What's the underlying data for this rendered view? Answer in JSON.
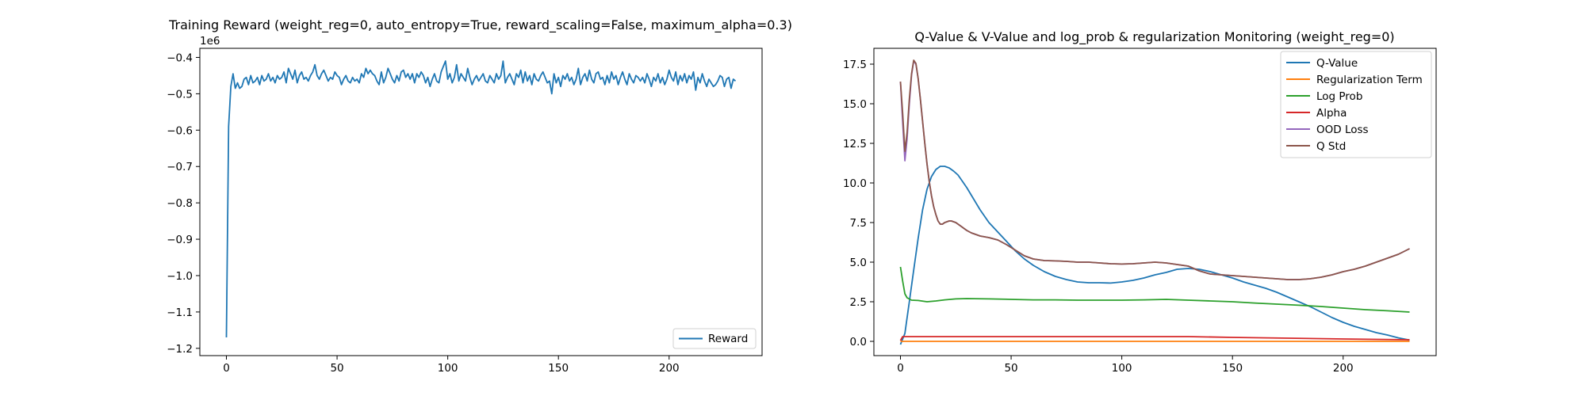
{
  "chart_data": [
    {
      "type": "line",
      "title": "Training Reward (weight_reg=0, auto_entropy=True, reward_scaling=False, maximum_alpha=0.3)",
      "xlabel": "",
      "ylabel": "",
      "offset_label": "1e6",
      "xlim": [
        -12,
        242
      ],
      "ylim": [
        -1.22,
        -0.375
      ],
      "xticks": [
        0,
        50,
        100,
        150,
        200
      ],
      "xtick_labels": [
        "0",
        "50",
        "100",
        "150",
        "200"
      ],
      "yticks": [
        -1.2,
        -1.1,
        -1.0,
        -0.9,
        -0.8,
        -0.7,
        -0.6,
        -0.5,
        -0.4
      ],
      "ytick_labels": [
        "−1.2",
        "−1.1",
        "−1.0",
        "−0.9",
        "−0.8",
        "−0.7",
        "−0.6",
        "−0.5",
        "−0.4"
      ],
      "grid": false,
      "legend_position": "lower-right",
      "series": [
        {
          "name": "Reward",
          "color": "#1f77b4",
          "x": [
            0,
            1,
            2,
            3,
            4,
            5,
            6,
            7,
            8,
            9,
            10,
            11,
            12,
            13,
            14,
            15,
            16,
            17,
            18,
            19,
            20,
            21,
            22,
            23,
            24,
            25,
            26,
            27,
            28,
            29,
            30,
            31,
            32,
            33,
            34,
            35,
            36,
            37,
            38,
            39,
            40,
            41,
            42,
            43,
            44,
            45,
            46,
            47,
            48,
            49,
            50,
            51,
            52,
            53,
            54,
            55,
            56,
            57,
            58,
            59,
            60,
            61,
            62,
            63,
            64,
            65,
            66,
            67,
            68,
            69,
            70,
            71,
            72,
            73,
            74,
            75,
            76,
            77,
            78,
            79,
            80,
            81,
            82,
            83,
            84,
            85,
            86,
            87,
            88,
            89,
            90,
            91,
            92,
            93,
            94,
            95,
            96,
            97,
            98,
            99,
            100,
            101,
            102,
            103,
            104,
            105,
            106,
            107,
            108,
            109,
            110,
            111,
            112,
            113,
            114,
            115,
            116,
            117,
            118,
            119,
            120,
            121,
            122,
            123,
            124,
            125,
            126,
            127,
            128,
            129,
            130,
            131,
            132,
            133,
            134,
            135,
            136,
            137,
            138,
            139,
            140,
            141,
            142,
            143,
            144,
            145,
            146,
            147,
            148,
            149,
            150,
            151,
            152,
            153,
            154,
            155,
            156,
            157,
            158,
            159,
            160,
            161,
            162,
            163,
            164,
            165,
            166,
            167,
            168,
            169,
            170,
            171,
            172,
            173,
            174,
            175,
            176,
            177,
            178,
            179,
            180,
            181,
            182,
            183,
            184,
            185,
            186,
            187,
            188,
            189,
            190,
            191,
            192,
            193,
            194,
            195,
            196,
            197,
            198,
            199,
            200,
            201,
            202,
            203,
            204,
            205,
            206,
            207,
            208,
            209,
            210,
            211,
            212,
            213,
            214,
            215,
            216,
            217,
            218,
            219,
            220,
            221,
            222,
            223,
            224,
            225,
            226,
            227,
            228,
            229,
            230
          ],
          "values": [
            -1.17,
            -0.59,
            -0.48,
            -0.445,
            -0.485,
            -0.47,
            -0.485,
            -0.48,
            -0.46,
            -0.455,
            -0.475,
            -0.45,
            -0.47,
            -0.465,
            -0.455,
            -0.475,
            -0.45,
            -0.465,
            -0.46,
            -0.445,
            -0.465,
            -0.455,
            -0.47,
            -0.45,
            -0.46,
            -0.455,
            -0.44,
            -0.47,
            -0.43,
            -0.445,
            -0.46,
            -0.435,
            -0.47,
            -0.45,
            -0.44,
            -0.46,
            -0.455,
            -0.465,
            -0.45,
            -0.44,
            -0.42,
            -0.45,
            -0.46,
            -0.445,
            -0.435,
            -0.45,
            -0.465,
            -0.455,
            -0.46,
            -0.44,
            -0.45,
            -0.455,
            -0.475,
            -0.46,
            -0.45,
            -0.465,
            -0.47,
            -0.455,
            -0.465,
            -0.46,
            -0.47,
            -0.445,
            -0.455,
            -0.43,
            -0.445,
            -0.435,
            -0.445,
            -0.45,
            -0.465,
            -0.475,
            -0.44,
            -0.47,
            -0.455,
            -0.43,
            -0.445,
            -0.46,
            -0.47,
            -0.45,
            -0.465,
            -0.44,
            -0.435,
            -0.455,
            -0.445,
            -0.46,
            -0.445,
            -0.47,
            -0.445,
            -0.455,
            -0.44,
            -0.45,
            -0.47,
            -0.455,
            -0.48,
            -0.46,
            -0.445,
            -0.465,
            -0.47,
            -0.44,
            -0.425,
            -0.41,
            -0.46,
            -0.445,
            -0.47,
            -0.455,
            -0.42,
            -0.465,
            -0.445,
            -0.455,
            -0.465,
            -0.43,
            -0.455,
            -0.475,
            -0.46,
            -0.45,
            -0.465,
            -0.455,
            -0.445,
            -0.465,
            -0.47,
            -0.45,
            -0.46,
            -0.47,
            -0.445,
            -0.46,
            -0.45,
            -0.41,
            -0.47,
            -0.455,
            -0.445,
            -0.46,
            -0.475,
            -0.445,
            -0.455,
            -0.435,
            -0.47,
            -0.44,
            -0.465,
            -0.45,
            -0.475,
            -0.445,
            -0.46,
            -0.465,
            -0.45,
            -0.44,
            -0.455,
            -0.47,
            -0.465,
            -0.5,
            -0.445,
            -0.47,
            -0.455,
            -0.48,
            -0.45,
            -0.46,
            -0.445,
            -0.465,
            -0.455,
            -0.475,
            -0.46,
            -0.43,
            -0.475,
            -0.455,
            -0.445,
            -0.465,
            -0.435,
            -0.46,
            -0.47,
            -0.445,
            -0.44,
            -0.46,
            -0.455,
            -0.475,
            -0.45,
            -0.47,
            -0.44,
            -0.46,
            -0.45,
            -0.475,
            -0.455,
            -0.44,
            -0.46,
            -0.475,
            -0.445,
            -0.46,
            -0.47,
            -0.45,
            -0.455,
            -0.465,
            -0.455,
            -0.47,
            -0.445,
            -0.46,
            -0.48,
            -0.455,
            -0.465,
            -0.445,
            -0.47,
            -0.455,
            -0.475,
            -0.46,
            -0.435,
            -0.455,
            -0.465,
            -0.44,
            -0.475,
            -0.45,
            -0.465,
            -0.445,
            -0.47,
            -0.45,
            -0.46,
            -0.44,
            -0.49,
            -0.455,
            -0.47,
            -0.445,
            -0.465,
            -0.48,
            -0.46,
            -0.47,
            -0.48,
            -0.475,
            -0.465,
            -0.45,
            -0.455,
            -0.48,
            -0.46,
            -0.455,
            -0.485,
            -0.46,
            -0.465
          ]
        }
      ]
    },
    {
      "type": "line",
      "title": "Q-Value & V-Value and log_prob & regularization Monitoring (weight_reg=0)",
      "xlabel": "",
      "ylabel": "",
      "xlim": [
        -12,
        242
      ],
      "ylim": [
        -0.9,
        18.5
      ],
      "xticks": [
        0,
        50,
        100,
        150,
        200
      ],
      "xtick_labels": [
        "0",
        "50",
        "100",
        "150",
        "200"
      ],
      "yticks": [
        0,
        2.5,
        5,
        7.5,
        10,
        12.5,
        15,
        17.5
      ],
      "ytick_labels": [
        "0.0",
        "2.5",
        "5.0",
        "7.5",
        "10.0",
        "12.5",
        "15.0",
        "17.5"
      ],
      "grid": false,
      "legend_position": "upper-right",
      "series": [
        {
          "name": "Q-Value",
          "color": "#1f77b4",
          "x": [
            0,
            2,
            4,
            6,
            8,
            10,
            12,
            14,
            16,
            18,
            20,
            22,
            24,
            26,
            28,
            30,
            33,
            36,
            40,
            44,
            48,
            52,
            56,
            60,
            65,
            70,
            75,
            80,
            85,
            90,
            95,
            100,
            105,
            110,
            115,
            120,
            125,
            130,
            135,
            140,
            145,
            150,
            155,
            160,
            165,
            170,
            175,
            180,
            185,
            190,
            195,
            200,
            205,
            210,
            215,
            220,
            225,
            230
          ],
          "values": [
            -0.2,
            0.5,
            2.5,
            4.5,
            6.5,
            8.3,
            9.6,
            10.4,
            10.85,
            11.05,
            11.05,
            10.95,
            10.75,
            10.5,
            10.1,
            9.7,
            9.0,
            8.3,
            7.5,
            6.9,
            6.3,
            5.7,
            5.2,
            4.8,
            4.4,
            4.1,
            3.9,
            3.75,
            3.7,
            3.7,
            3.68,
            3.75,
            3.85,
            4.0,
            4.2,
            4.35,
            4.55,
            4.6,
            4.55,
            4.4,
            4.2,
            4.0,
            3.75,
            3.55,
            3.35,
            3.1,
            2.8,
            2.5,
            2.2,
            1.85,
            1.5,
            1.2,
            0.95,
            0.75,
            0.55,
            0.4,
            0.22,
            0.08
          ]
        },
        {
          "name": "Regularization Term",
          "color": "#ff7f0e",
          "x": [
            0,
            230
          ],
          "values": [
            0.0,
            0.0
          ]
        },
        {
          "name": "Log Prob",
          "color": "#2ca02c",
          "x": [
            0,
            1,
            2,
            3,
            5,
            8,
            12,
            16,
            20,
            25,
            30,
            40,
            50,
            60,
            70,
            80,
            90,
            100,
            110,
            120,
            130,
            140,
            150,
            160,
            170,
            180,
            190,
            200,
            210,
            220,
            230
          ],
          "values": [
            4.7,
            3.8,
            3.0,
            2.75,
            2.6,
            2.58,
            2.5,
            2.55,
            2.62,
            2.68,
            2.7,
            2.68,
            2.65,
            2.62,
            2.62,
            2.6,
            2.6,
            2.6,
            2.62,
            2.65,
            2.6,
            2.55,
            2.5,
            2.42,
            2.35,
            2.28,
            2.2,
            2.1,
            2.0,
            1.93,
            1.85
          ]
        },
        {
          "name": "Alpha",
          "color": "#d62728",
          "x": [
            0,
            1,
            130,
            150,
            200,
            230
          ],
          "values": [
            0.05,
            0.3,
            0.3,
            0.25,
            0.15,
            0.1
          ]
        },
        {
          "name": "OOD Loss",
          "color": "#9467bd",
          "x": [
            0,
            1,
            2,
            3,
            4,
            5,
            6,
            7,
            8,
            9,
            10,
            11,
            12,
            13,
            14,
            15,
            16,
            17,
            18,
            19,
            20,
            21,
            22,
            23,
            24,
            25,
            26,
            27,
            28,
            29,
            30,
            32,
            34,
            36,
            38,
            40,
            44,
            48,
            52,
            56,
            60,
            65,
            70,
            75,
            80,
            85,
            90,
            95,
            100,
            105,
            110,
            115,
            120,
            125,
            130,
            135,
            140,
            145,
            150,
            155,
            160,
            165,
            170,
            175,
            180,
            185,
            190,
            195,
            200,
            205,
            210,
            215,
            220,
            225,
            230
          ],
          "values": [
            16.4,
            13.8,
            11.4,
            12.8,
            15.0,
            16.8,
            17.7,
            17.5,
            16.6,
            15.3,
            13.9,
            12.5,
            11.2,
            10.1,
            9.2,
            8.5,
            8.0,
            7.6,
            7.4,
            7.4,
            7.5,
            7.55,
            7.6,
            7.6,
            7.55,
            7.5,
            7.4,
            7.3,
            7.2,
            7.1,
            7.0,
            6.85,
            6.75,
            6.65,
            6.6,
            6.55,
            6.4,
            6.1,
            5.75,
            5.4,
            5.2,
            5.1,
            5.08,
            5.05,
            5.0,
            5.0,
            4.95,
            4.9,
            4.88,
            4.9,
            4.95,
            5.0,
            4.95,
            4.85,
            4.75,
            4.45,
            4.25,
            4.2,
            4.15,
            4.1,
            4.05,
            4.0,
            3.95,
            3.9,
            3.9,
            3.95,
            4.05,
            4.2,
            4.4,
            4.55,
            4.75,
            5.0,
            5.25,
            5.5,
            5.85
          ]
        },
        {
          "name": "Q Std",
          "color": "#8c564b",
          "x": [
            0,
            1,
            2,
            3,
            4,
            5,
            6,
            7,
            8,
            9,
            10,
            11,
            12,
            13,
            14,
            15,
            16,
            17,
            18,
            19,
            20,
            21,
            22,
            23,
            24,
            25,
            26,
            27,
            28,
            29,
            30,
            32,
            34,
            36,
            38,
            40,
            44,
            48,
            52,
            56,
            60,
            65,
            70,
            75,
            80,
            85,
            90,
            95,
            100,
            105,
            110,
            115,
            120,
            125,
            130,
            135,
            140,
            145,
            150,
            155,
            160,
            165,
            170,
            175,
            180,
            185,
            190,
            195,
            200,
            205,
            210,
            215,
            220,
            225,
            230
          ],
          "values": [
            16.4,
            14.4,
            12.0,
            13.2,
            15.3,
            16.9,
            17.75,
            17.55,
            16.6,
            15.3,
            13.9,
            12.5,
            11.2,
            10.1,
            9.2,
            8.5,
            8.0,
            7.6,
            7.4,
            7.4,
            7.5,
            7.55,
            7.6,
            7.6,
            7.55,
            7.5,
            7.4,
            7.3,
            7.2,
            7.1,
            7.0,
            6.85,
            6.75,
            6.65,
            6.6,
            6.55,
            6.4,
            6.1,
            5.75,
            5.4,
            5.2,
            5.1,
            5.08,
            5.05,
            5.0,
            5.0,
            4.95,
            4.9,
            4.88,
            4.9,
            4.95,
            5.0,
            4.95,
            4.85,
            4.75,
            4.45,
            4.25,
            4.2,
            4.15,
            4.1,
            4.05,
            4.0,
            3.95,
            3.9,
            3.9,
            3.95,
            4.05,
            4.2,
            4.4,
            4.55,
            4.75,
            5.0,
            5.25,
            5.5,
            5.85
          ]
        }
      ]
    }
  ]
}
